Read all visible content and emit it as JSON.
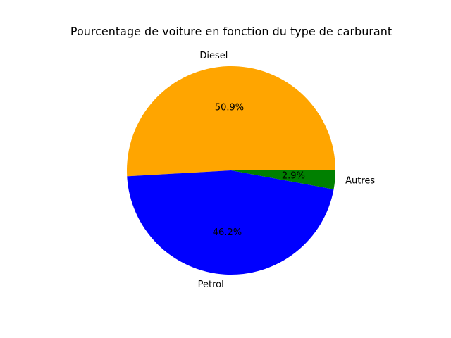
{
  "chart_data": {
    "type": "pie",
    "title": "Pourcentage de voiture en fonction du type de carburant",
    "slices": [
      {
        "label": "Diesel",
        "value": 50.9,
        "percent_label": "50.9%",
        "color": "#ffa500"
      },
      {
        "label": "Petrol",
        "value": 46.2,
        "percent_label": "46.2%",
        "color": "#0000ff"
      },
      {
        "label": "Autres",
        "value": 2.9,
        "percent_label": "2.9%",
        "color": "#008000"
      }
    ],
    "start_angle_deg": 0,
    "direction": "counterclockwise"
  }
}
